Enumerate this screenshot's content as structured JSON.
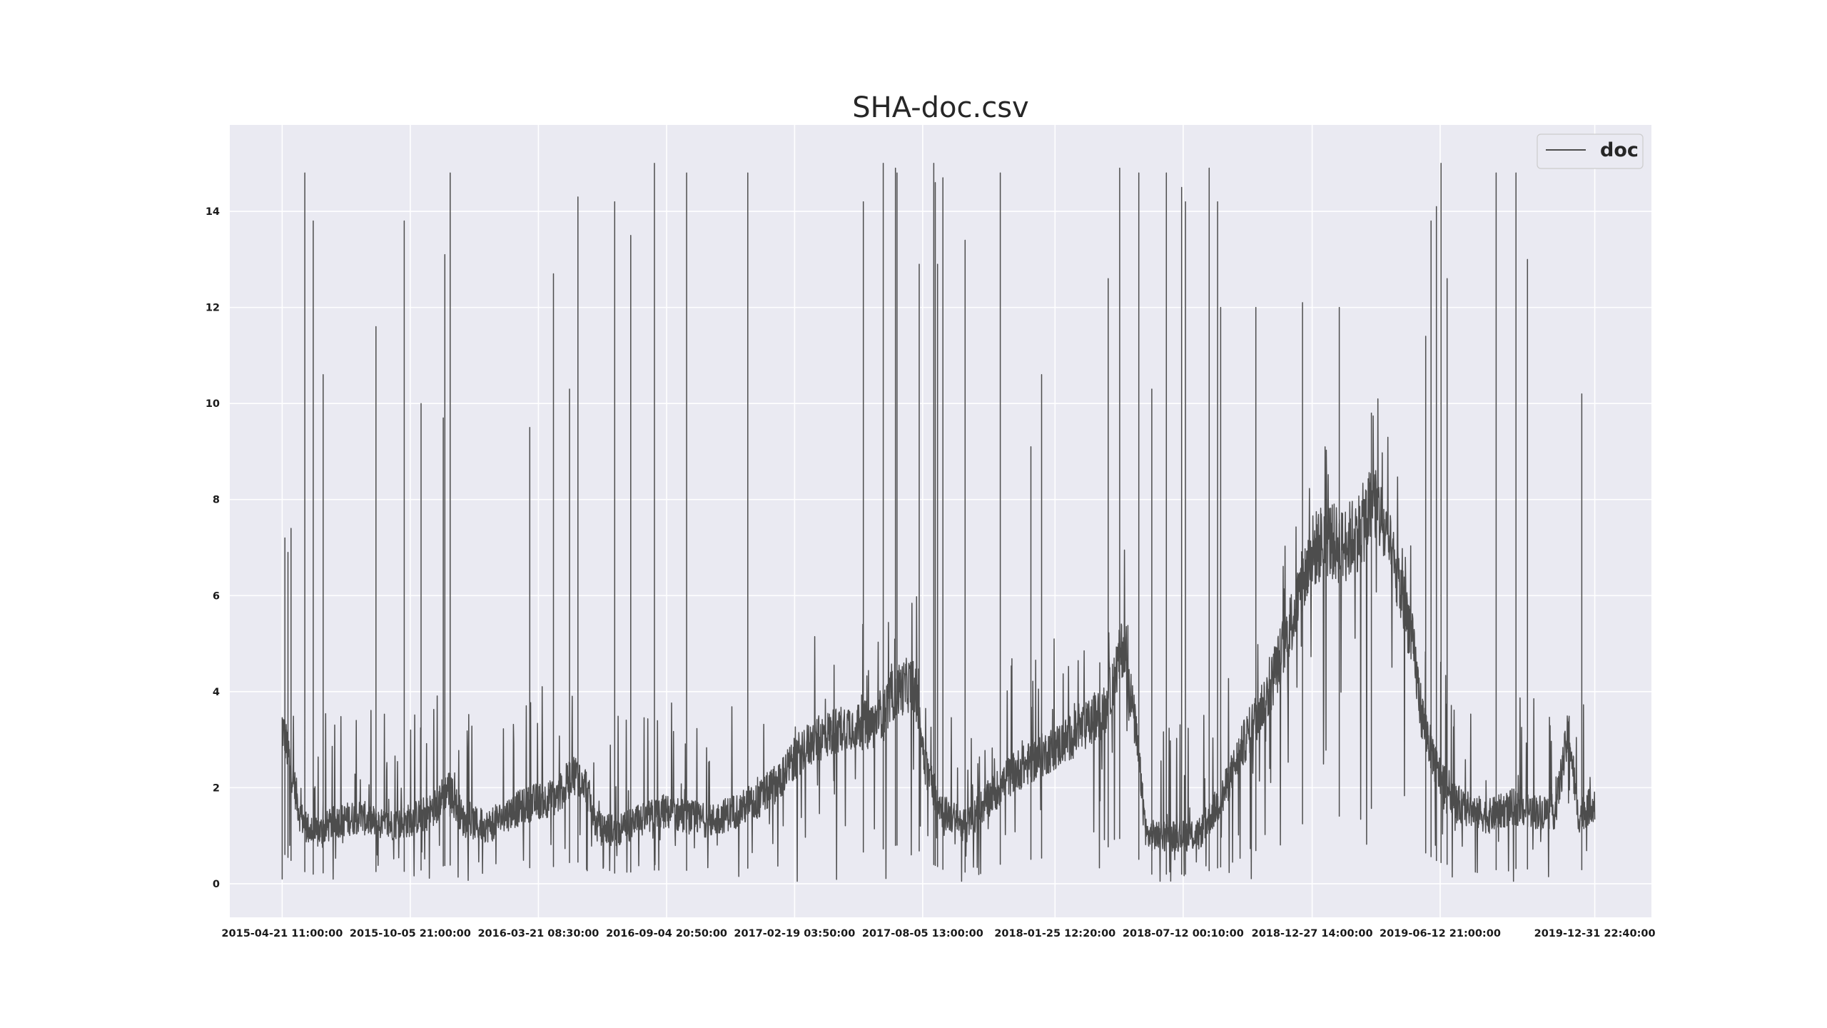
{
  "chart_data": {
    "type": "line",
    "title": "SHA-doc.csv",
    "xlabel": "",
    "ylabel": "",
    "ylim": [
      -0.7,
      15.8
    ],
    "xlim": [
      "2015-02-12 00:00:00",
      "2020-03-15 00:00:00"
    ],
    "grid": true,
    "legend_position": "top-right",
    "x_tick_labels": [
      "2015-04-21 11:00:00",
      "2015-10-05 21:00:00",
      "2016-03-21 08:30:00",
      "2016-09-04 20:50:00",
      "2017-02-19 03:50:00",
      "2017-08-05 13:00:00",
      "2018-01-25 12:20:00",
      "2018-07-12 00:10:00",
      "2018-12-27 14:00:00",
      "2019-06-12 21:00:00",
      "2019-12-31 22:40:00"
    ],
    "y_ticks": [
      0,
      2,
      4,
      6,
      8,
      10,
      12,
      14
    ],
    "y_tick_labels": [
      "0",
      "2",
      "4",
      "6",
      "8",
      "10",
      "12",
      "14"
    ],
    "series": [
      {
        "name": "doc",
        "color": "#4d4d4d",
        "baseline": [
          [
            "2015-04-21 11:00:00",
            3.3
          ],
          [
            "2015-05-01 00:00:00",
            2.6
          ],
          [
            "2015-05-15 00:00:00",
            1.4
          ],
          [
            "2015-06-01 00:00:00",
            1.0
          ],
          [
            "2015-07-01 00:00:00",
            1.3
          ],
          [
            "2015-08-01 00:00:00",
            1.4
          ],
          [
            "2015-09-01 00:00:00",
            1.2
          ],
          [
            "2015-10-01 00:00:00",
            1.3
          ],
          [
            "2015-11-01 00:00:00",
            1.5
          ],
          [
            "2015-11-25 00:00:00",
            2.0
          ],
          [
            "2015-12-15 00:00:00",
            1.3
          ],
          [
            "2016-01-15 00:00:00",
            1.2
          ],
          [
            "2016-02-15 00:00:00",
            1.5
          ],
          [
            "2016-03-15 00:00:00",
            1.7
          ],
          [
            "2016-04-15 00:00:00",
            1.8
          ],
          [
            "2016-05-05 00:00:00",
            2.3
          ],
          [
            "2016-05-20 00:00:00",
            2.2
          ],
          [
            "2016-06-05 00:00:00",
            1.2
          ],
          [
            "2016-07-01 00:00:00",
            1.1
          ],
          [
            "2016-08-01 00:00:00",
            1.3
          ],
          [
            "2016-09-01 00:00:00",
            1.5
          ],
          [
            "2016-10-01 00:00:00",
            1.4
          ],
          [
            "2016-11-01 00:00:00",
            1.3
          ],
          [
            "2016-12-01 00:00:00",
            1.5
          ],
          [
            "2017-01-01 00:00:00",
            1.7
          ],
          [
            "2017-02-01 00:00:00",
            2.2
          ],
          [
            "2017-03-01 00:00:00",
            2.8
          ],
          [
            "2017-04-01 00:00:00",
            3.1
          ],
          [
            "2017-05-01 00:00:00",
            3.3
          ],
          [
            "2017-06-01 00:00:00",
            3.3
          ],
          [
            "2017-07-01 00:00:00",
            4.0
          ],
          [
            "2017-07-25 00:00:00",
            4.2
          ],
          [
            "2017-08-10 00:00:00",
            2.4
          ],
          [
            "2017-09-01 00:00:00",
            1.5
          ],
          [
            "2017-10-01 00:00:00",
            1.2
          ],
          [
            "2017-11-01 00:00:00",
            1.8
          ],
          [
            "2017-12-01 00:00:00",
            2.3
          ],
          [
            "2018-01-01 00:00:00",
            2.6
          ],
          [
            "2018-02-01 00:00:00",
            2.9
          ],
          [
            "2018-03-01 00:00:00",
            3.2
          ],
          [
            "2018-04-01 00:00:00",
            3.6
          ],
          [
            "2018-04-25 00:00:00",
            5.0
          ],
          [
            "2018-05-10 00:00:00",
            3.3
          ],
          [
            "2018-05-25 00:00:00",
            1.0
          ],
          [
            "2018-07-01 00:00:00",
            1.0
          ],
          [
            "2018-08-01 00:00:00",
            1.0
          ],
          [
            "2018-09-01 00:00:00",
            1.8
          ],
          [
            "2018-10-01 00:00:00",
            3.0
          ],
          [
            "2018-11-01 00:00:00",
            4.0
          ],
          [
            "2018-12-01 00:00:00",
            5.5
          ],
          [
            "2018-12-27 14:00:00",
            6.9
          ],
          [
            "2019-01-15 00:00:00",
            7.2
          ],
          [
            "2019-02-05 00:00:00",
            7.0
          ],
          [
            "2019-03-01 00:00:00",
            7.4
          ],
          [
            "2019-03-20 00:00:00",
            8.0
          ],
          [
            "2019-04-10 00:00:00",
            6.8
          ],
          [
            "2019-05-05 00:00:00",
            5.3
          ],
          [
            "2019-05-20 00:00:00",
            3.5
          ],
          [
            "2019-06-10 00:00:00",
            2.3
          ],
          [
            "2019-07-10 00:00:00",
            1.6
          ],
          [
            "2019-08-15 00:00:00",
            1.4
          ],
          [
            "2019-09-15 00:00:00",
            1.6
          ],
          [
            "2019-10-15 00:00:00",
            1.5
          ],
          [
            "2019-11-10 00:00:00",
            1.5
          ],
          [
            "2019-11-28 00:00:00",
            3.2
          ],
          [
            "2019-12-10 00:00:00",
            1.4
          ],
          [
            "2019-12-31 22:40:00",
            1.7
          ]
        ],
        "spikes": [
          [
            "2015-04-21 11:00:00",
            0.1
          ],
          [
            "2015-04-25 00:00:00",
            7.2
          ],
          [
            "2015-04-29 00:00:00",
            6.9
          ],
          [
            "2015-05-03 00:00:00",
            7.4
          ],
          [
            "2015-05-21 00:00:00",
            14.8
          ],
          [
            "2015-06-01 00:00:00",
            13.8
          ],
          [
            "2015-06-14 00:00:00",
            10.6
          ],
          [
            "2015-08-22 00:00:00",
            11.6
          ],
          [
            "2015-09-28 00:00:00",
            13.8
          ],
          [
            "2015-10-20 00:00:00",
            10.0
          ],
          [
            "2015-11-18 00:00:00",
            9.7
          ],
          [
            "2015-11-20 00:00:00",
            13.1
          ],
          [
            "2015-11-27 00:00:00",
            14.8
          ],
          [
            "2016-03-10 00:00:00",
            9.5
          ],
          [
            "2016-04-10 00:00:00",
            12.7
          ],
          [
            "2016-05-01 00:00:00",
            10.3
          ],
          [
            "2016-05-12 00:00:00",
            14.3
          ],
          [
            "2016-06-29 00:00:00",
            14.2
          ],
          [
            "2016-07-20 00:00:00",
            13.5
          ],
          [
            "2016-08-20 00:00:00",
            15.0
          ],
          [
            "2016-10-01 00:00:00",
            14.8
          ],
          [
            "2016-12-20 00:00:00",
            14.8
          ],
          [
            "2017-05-20 00:00:00",
            14.2
          ],
          [
            "2017-06-15 00:00:00",
            15.0
          ],
          [
            "2017-07-01 00:00:00",
            14.9
          ],
          [
            "2017-07-03 00:00:00",
            14.8
          ],
          [
            "2017-08-01 00:00:00",
            12.9
          ],
          [
            "2017-08-20 00:00:00",
            15.0
          ],
          [
            "2017-08-22 00:00:00",
            14.6
          ],
          [
            "2017-08-25 00:00:00",
            12.9
          ],
          [
            "2017-09-01 00:00:00",
            14.7
          ],
          [
            "2017-09-30 00:00:00",
            13.4
          ],
          [
            "2017-11-15 00:00:00",
            14.8
          ],
          [
            "2017-12-25 00:00:00",
            9.1
          ],
          [
            "2018-01-08 00:00:00",
            10.6
          ],
          [
            "2018-04-05 00:00:00",
            12.6
          ],
          [
            "2018-04-20 00:00:00",
            14.9
          ],
          [
            "2018-05-15 00:00:00",
            14.8
          ],
          [
            "2018-06-01 00:00:00",
            10.3
          ],
          [
            "2018-06-20 00:00:00",
            14.8
          ],
          [
            "2018-07-10 00:00:00",
            14.5
          ],
          [
            "2018-07-15 00:00:00",
            14.2
          ],
          [
            "2018-08-15 00:00:00",
            14.9
          ],
          [
            "2018-08-26 00:00:00",
            14.2
          ],
          [
            "2018-08-30 00:00:00",
            12.0
          ],
          [
            "2018-10-15 00:00:00",
            12.0
          ],
          [
            "2018-12-15 00:00:00",
            12.1
          ],
          [
            "2019-02-01 00:00:00",
            12.0
          ],
          [
            "2019-03-15 00:00:00",
            9.8
          ],
          [
            "2019-05-25 00:00:00",
            11.4
          ],
          [
            "2019-06-01 00:00:00",
            13.8
          ],
          [
            "2019-06-08 00:00:00",
            14.1
          ],
          [
            "2019-06-14 00:00:00",
            15.0
          ],
          [
            "2019-06-22 00:00:00",
            12.6
          ],
          [
            "2019-08-25 00:00:00",
            14.8
          ],
          [
            "2019-09-20 00:00:00",
            14.8
          ],
          [
            "2019-10-05 00:00:00",
            13.0
          ],
          [
            "2019-12-15 00:00:00",
            10.2
          ]
        ]
      }
    ]
  }
}
